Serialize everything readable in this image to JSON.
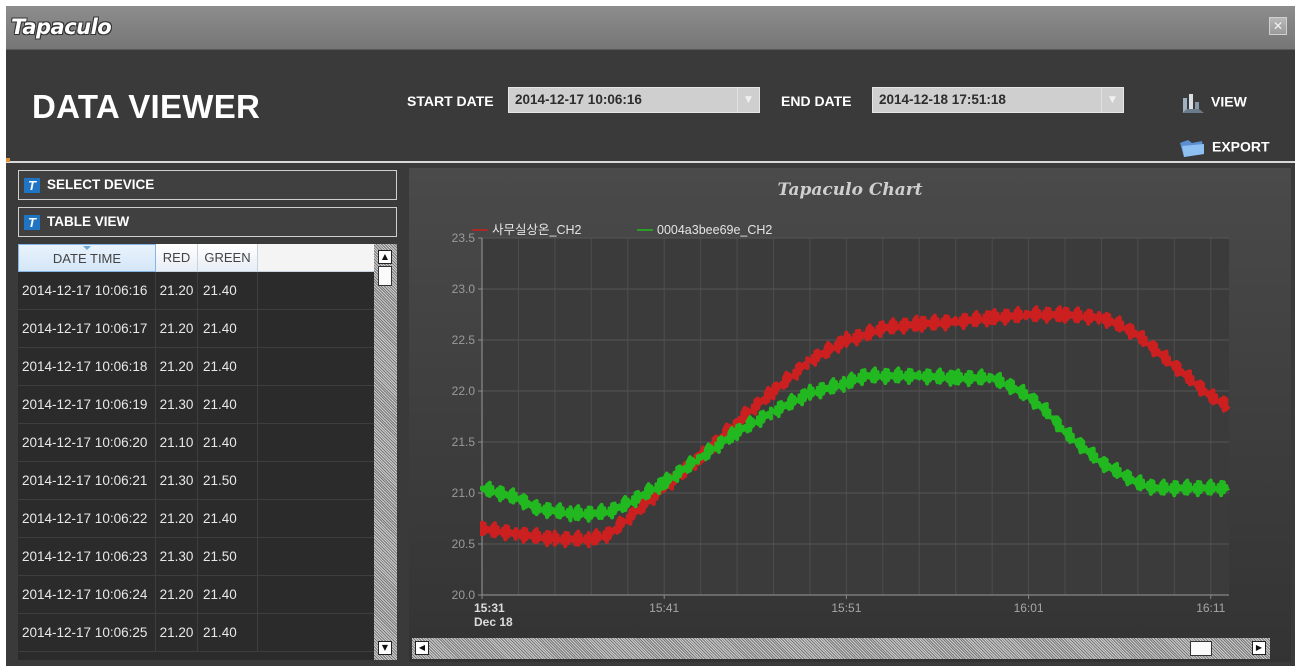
{
  "app": {
    "logo": "Tapaculo",
    "close_glyph": "✕"
  },
  "header": {
    "title": "DATA VIEWER",
    "start_label": "START DATE",
    "start_value": "2014-12-17 10:06:16",
    "end_label": "END DATE",
    "end_value": "2014-12-18 17:51:18",
    "view_label": "VIEW",
    "export_label": "EXPORT"
  },
  "sidebar": {
    "select_device": "SELECT DEVICE",
    "table_view": "TABLE VIEW"
  },
  "table": {
    "columns": [
      "DATE TIME",
      "RED",
      "GREEN"
    ],
    "rows": [
      [
        "2014-12-17 10:06:16",
        "21.20",
        "21.40"
      ],
      [
        "2014-12-17 10:06:17",
        "21.20",
        "21.40"
      ],
      [
        "2014-12-17 10:06:18",
        "21.20",
        "21.40"
      ],
      [
        "2014-12-17 10:06:19",
        "21.30",
        "21.40"
      ],
      [
        "2014-12-17 10:06:20",
        "21.10",
        "21.40"
      ],
      [
        "2014-12-17 10:06:21",
        "21.30",
        "21.50"
      ],
      [
        "2014-12-17 10:06:22",
        "21.20",
        "21.40"
      ],
      [
        "2014-12-17 10:06:23",
        "21.30",
        "21.50"
      ],
      [
        "2014-12-17 10:06:24",
        "21.20",
        "21.40"
      ],
      [
        "2014-12-17 10:06:25",
        "21.20",
        "21.40"
      ]
    ]
  },
  "icons": {
    "view": "bar-chart-icon",
    "export": "folder-icon",
    "device": "t-logo-icon"
  },
  "chart_data": {
    "type": "line",
    "title": "Tapaculo Chart",
    "x_tick_labels": [
      "15:31",
      "15:41",
      "15:51",
      "16:01",
      "16:11"
    ],
    "x_sub_label": "Dec 18",
    "x_ticks_min": [
      0,
      10,
      20,
      30,
      40
    ],
    "xlim_min": [
      0,
      41
    ],
    "ylim": [
      20.0,
      23.5
    ],
    "y_ticks": [
      "20.0",
      "20.5",
      "21.0",
      "21.5",
      "22.0",
      "22.5",
      "23.0",
      "23.5"
    ],
    "grid": true,
    "legend_position": "top-left",
    "series": [
      {
        "name": "사무실상온_CH2",
        "color": "#cc1f1f",
        "x": [
          0,
          2,
          4,
          6,
          7,
          8,
          10,
          12,
          14,
          16,
          18,
          20,
          21,
          22,
          24,
          26,
          28,
          30,
          32,
          34,
          35,
          36,
          37,
          38,
          39,
          40,
          41
        ],
        "y": [
          20.65,
          20.6,
          20.55,
          20.55,
          20.6,
          20.75,
          21.05,
          21.35,
          21.7,
          22.0,
          22.3,
          22.5,
          22.55,
          22.62,
          22.66,
          22.68,
          22.72,
          22.75,
          22.75,
          22.72,
          22.65,
          22.55,
          22.4,
          22.25,
          22.1,
          21.95,
          21.85
        ]
      },
      {
        "name": "0004a3bee69e_CH2",
        "color": "#22b81f",
        "x": [
          0,
          1,
          2,
          3,
          5,
          6,
          7,
          8,
          10,
          12,
          14,
          16,
          18,
          20,
          21,
          22,
          24,
          26,
          28,
          29,
          30,
          31,
          32,
          33,
          34,
          35,
          36,
          37,
          38,
          39,
          40,
          41
        ],
        "y": [
          21.05,
          21.0,
          20.95,
          20.85,
          20.8,
          20.8,
          20.82,
          20.9,
          21.1,
          21.35,
          21.6,
          21.8,
          21.98,
          22.08,
          22.15,
          22.15,
          22.15,
          22.13,
          22.13,
          22.05,
          21.95,
          21.8,
          21.6,
          21.45,
          21.3,
          21.2,
          21.1,
          21.05,
          21.05,
          21.05,
          21.05,
          21.05
        ]
      }
    ]
  }
}
